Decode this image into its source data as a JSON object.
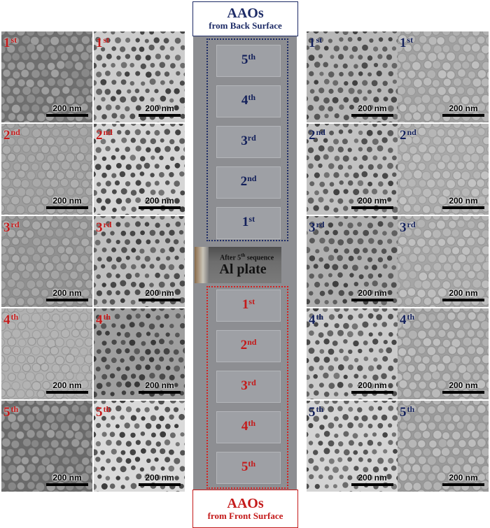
{
  "top_label": {
    "title": "AAOs",
    "subtitle": "from Back Surface"
  },
  "bottom_label": {
    "title": "AAOs",
    "subtitle": "from Front Surface"
  },
  "al_plate": {
    "small_text_pre": "After 5",
    "small_text_sup": "th",
    "small_text_post": " sequence",
    "label": "Al plate"
  },
  "scale_text": "200 nm",
  "colors": {
    "front": "#c41a1a",
    "back": "#13205a",
    "panel": "#8d8e92"
  },
  "back_slides": [
    {
      "num": "5",
      "suf": "th"
    },
    {
      "num": "4",
      "suf": "th"
    },
    {
      "num": "3",
      "suf": "rd"
    },
    {
      "num": "2",
      "suf": "nd"
    },
    {
      "num": "1",
      "suf": "st"
    }
  ],
  "front_slides": [
    {
      "num": "1",
      "suf": "st"
    },
    {
      "num": "2",
      "suf": "nd"
    },
    {
      "num": "3",
      "suf": "rd"
    },
    {
      "num": "4",
      "suf": "th"
    },
    {
      "num": "5",
      "suf": "th"
    }
  ],
  "row_labels": [
    {
      "num": "1",
      "suf": "st"
    },
    {
      "num": "2",
      "suf": "nd"
    },
    {
      "num": "3",
      "suf": "rd"
    },
    {
      "num": "4",
      "suf": "th"
    },
    {
      "num": "5",
      "suf": "th"
    }
  ]
}
